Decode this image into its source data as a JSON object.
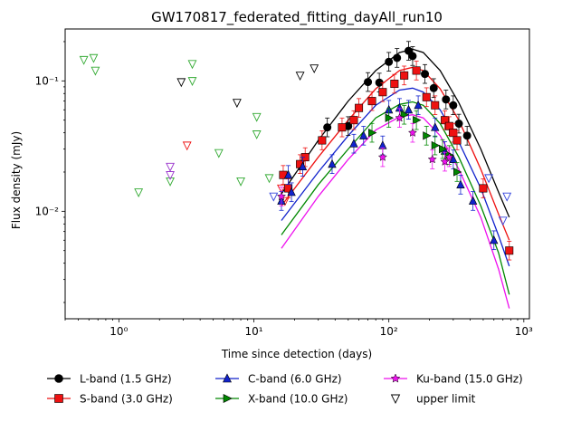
{
  "chart_data": {
    "type": "scatter",
    "title": "GW170817_federated_fitting_dayAll_run10",
    "xlabel": "Time since detection (days)",
    "ylabel": "Flux density (mJy)",
    "xscale": "log",
    "yscale": "log",
    "xlim": [
      0.4,
      1100
    ],
    "ylim": [
      0.0015,
      0.25
    ],
    "x_ticks": [
      {
        "value": 1,
        "label": "10⁰"
      },
      {
        "value": 10,
        "label": "10¹"
      },
      {
        "value": 100,
        "label": "10²"
      },
      {
        "value": 1000,
        "label": "10³"
      }
    ],
    "y_ticks": [
      {
        "value": 0.01,
        "label": "10⁻²"
      },
      {
        "value": 0.1,
        "label": "10⁻¹"
      }
    ],
    "legend_position": "bottom (outside, 3 columns)",
    "series": [
      {
        "name": "L-band (1.5 GHz)",
        "color": "#000000",
        "marker": "circle",
        "points": [
          [
            35,
            0.044
          ],
          [
            50,
            0.045
          ],
          [
            70,
            0.098
          ],
          [
            85,
            0.097
          ],
          [
            100,
            0.14
          ],
          [
            115,
            0.15
          ],
          [
            140,
            0.17
          ],
          [
            150,
            0.155
          ],
          [
            185,
            0.113
          ],
          [
            215,
            0.088
          ],
          [
            265,
            0.072
          ],
          [
            300,
            0.065
          ],
          [
            330,
            0.047
          ],
          [
            380,
            0.038
          ]
        ],
        "model": [
          [
            16,
            0.0136
          ],
          [
            30,
            0.035
          ],
          [
            50,
            0.07
          ],
          [
            80,
            0.12
          ],
          [
            120,
            0.165
          ],
          [
            150,
            0.175
          ],
          [
            180,
            0.165
          ],
          [
            240,
            0.12
          ],
          [
            330,
            0.068
          ],
          [
            480,
            0.03
          ],
          [
            650,
            0.014
          ],
          [
            780,
            0.009
          ]
        ]
      },
      {
        "name": "S-band (3.0 GHz)",
        "color": "#ee1111",
        "marker": "square",
        "points": [
          [
            16.5,
            0.019
          ],
          [
            18,
            0.015
          ],
          [
            22,
            0.023
          ],
          [
            24,
            0.026
          ],
          [
            32,
            0.035
          ],
          [
            45,
            0.044
          ],
          [
            55,
            0.05
          ],
          [
            60,
            0.062
          ],
          [
            75,
            0.07
          ],
          [
            90,
            0.082
          ],
          [
            110,
            0.095
          ],
          [
            130,
            0.11
          ],
          [
            160,
            0.12
          ],
          [
            190,
            0.075
          ],
          [
            220,
            0.065
          ],
          [
            260,
            0.05
          ],
          [
            280,
            0.045
          ],
          [
            300,
            0.04
          ],
          [
            320,
            0.035
          ],
          [
            500,
            0.015
          ],
          [
            780,
            0.005
          ]
        ],
        "model": [
          [
            16,
            0.011
          ],
          [
            30,
            0.026
          ],
          [
            50,
            0.05
          ],
          [
            80,
            0.087
          ],
          [
            120,
            0.12
          ],
          [
            150,
            0.127
          ],
          [
            180,
            0.12
          ],
          [
            240,
            0.087
          ],
          [
            330,
            0.05
          ],
          [
            480,
            0.021
          ],
          [
            650,
            0.0095
          ],
          [
            780,
            0.006
          ]
        ]
      },
      {
        "name": "C-band (6.0 GHz)",
        "color": "#1122cc",
        "marker": "triangle-up",
        "points": [
          [
            16,
            0.012
          ],
          [
            18,
            0.019
          ],
          [
            19,
            0.014
          ],
          [
            23,
            0.022
          ],
          [
            38,
            0.023
          ],
          [
            55,
            0.033
          ],
          [
            65,
            0.038
          ],
          [
            90,
            0.032
          ],
          [
            100,
            0.06
          ],
          [
            120,
            0.062
          ],
          [
            140,
            0.06
          ],
          [
            165,
            0.065
          ],
          [
            220,
            0.044
          ],
          [
            260,
            0.029
          ],
          [
            300,
            0.025
          ],
          [
            340,
            0.016
          ],
          [
            420,
            0.012
          ],
          [
            600,
            0.006
          ]
        ],
        "model": [
          [
            16,
            0.0085
          ],
          [
            30,
            0.02
          ],
          [
            50,
            0.038
          ],
          [
            80,
            0.065
          ],
          [
            120,
            0.085
          ],
          [
            150,
            0.088
          ],
          [
            180,
            0.082
          ],
          [
            240,
            0.06
          ],
          [
            330,
            0.034
          ],
          [
            480,
            0.015
          ],
          [
            650,
            0.0065
          ],
          [
            780,
            0.0038
          ]
        ]
      },
      {
        "name": "X-band (10.0 GHz)",
        "color": "#008800",
        "marker": "triangle-right",
        "points": [
          [
            75,
            0.04
          ],
          [
            100,
            0.052
          ],
          [
            130,
            0.055
          ],
          [
            160,
            0.05
          ],
          [
            190,
            0.038
          ],
          [
            220,
            0.032
          ],
          [
            250,
            0.03
          ],
          [
            280,
            0.027
          ],
          [
            320,
            0.02
          ]
        ],
        "model": [
          [
            16,
            0.0066
          ],
          [
            30,
            0.016
          ],
          [
            50,
            0.03
          ],
          [
            80,
            0.052
          ],
          [
            120,
            0.066
          ],
          [
            150,
            0.069
          ],
          [
            180,
            0.065
          ],
          [
            240,
            0.047
          ],
          [
            330,
            0.026
          ],
          [
            480,
            0.011
          ],
          [
            650,
            0.0048
          ],
          [
            780,
            0.0023
          ]
        ]
      },
      {
        "name": "Ku-band (15.0 GHz)",
        "color": "#ee11ee",
        "marker": "star",
        "points": [
          [
            16,
            0.013
          ],
          [
            90,
            0.026
          ],
          [
            120,
            0.052
          ],
          [
            150,
            0.04
          ],
          [
            210,
            0.025
          ],
          [
            260,
            0.024
          ],
          [
            280,
            0.026
          ]
        ],
        "model": [
          [
            16,
            0.0052
          ],
          [
            30,
            0.013
          ],
          [
            50,
            0.025
          ],
          [
            80,
            0.042
          ],
          [
            120,
            0.053
          ],
          [
            150,
            0.055
          ],
          [
            180,
            0.052
          ],
          [
            240,
            0.038
          ],
          [
            330,
            0.021
          ],
          [
            480,
            0.009
          ],
          [
            650,
            0.0036
          ],
          [
            780,
            0.0018
          ]
        ]
      }
    ],
    "upper_limits": {
      "name": "upper limit",
      "marker": "triangle-down-open",
      "points": [
        {
          "x": 0.55,
          "y": 0.145,
          "color": "#33aa33"
        },
        {
          "x": 0.65,
          "y": 0.15,
          "color": "#33aa33"
        },
        {
          "x": 0.67,
          "y": 0.12,
          "color": "#33aa33"
        },
        {
          "x": 1.4,
          "y": 0.014,
          "color": "#33aa33"
        },
        {
          "x": 2.4,
          "y": 0.017,
          "color": "#33aa33"
        },
        {
          "x": 3.5,
          "y": 0.135,
          "color": "#33aa33"
        },
        {
          "x": 3.5,
          "y": 0.1,
          "color": "#33aa33"
        },
        {
          "x": 5.5,
          "y": 0.028,
          "color": "#33aa33"
        },
        {
          "x": 8,
          "y": 0.017,
          "color": "#33aa33"
        },
        {
          "x": 10.5,
          "y": 0.053,
          "color": "#33aa33"
        },
        {
          "x": 10.5,
          "y": 0.039,
          "color": "#33aa33"
        },
        {
          "x": 13,
          "y": 0.018,
          "color": "#33aa33"
        },
        {
          "x": 2.9,
          "y": 0.098,
          "color": "#000000"
        },
        {
          "x": 7.5,
          "y": 0.068,
          "color": "#000000"
        },
        {
          "x": 22,
          "y": 0.11,
          "color": "#000000"
        },
        {
          "x": 28,
          "y": 0.125,
          "color": "#000000"
        },
        {
          "x": 3.2,
          "y": 0.032,
          "color": "#ee1111"
        },
        {
          "x": 16,
          "y": 0.015,
          "color": "#ee1111"
        },
        {
          "x": 17,
          "y": 0.012,
          "color": "#ee1111"
        },
        {
          "x": 2.4,
          "y": 0.022,
          "color": "#9933cc"
        },
        {
          "x": 2.4,
          "y": 0.019,
          "color": "#9933cc"
        },
        {
          "x": 14,
          "y": 0.013,
          "color": "#3344dd"
        },
        {
          "x": 550,
          "y": 0.018,
          "color": "#3344dd"
        },
        {
          "x": 700,
          "y": 0.0085,
          "color": "#3344dd"
        },
        {
          "x": 750,
          "y": 0.013,
          "color": "#3344dd"
        }
      ]
    }
  }
}
